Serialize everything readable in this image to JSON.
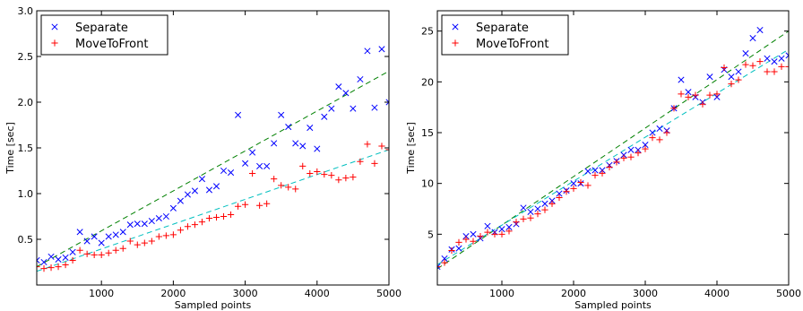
{
  "chart_data": [
    {
      "type": "scatter",
      "xlabel": "Sampled points",
      "ylabel": "Time [sec]",
      "xlim": [
        100,
        5000
      ],
      "ylim": [
        0,
        3.0
      ],
      "xticks": [
        1000,
        2000,
        3000,
        4000,
        5000
      ],
      "yticks": [
        0.5,
        1.0,
        1.5,
        2.0,
        2.5,
        3.0
      ],
      "ytick_labels": [
        "0.5",
        "1.0",
        "1.5",
        "2.0",
        "2.5",
        "3.0"
      ],
      "grid": false,
      "legend_position": "top-left",
      "series": [
        {
          "name": "Separate",
          "marker": "x",
          "color": "#0000ff",
          "x": [
            100,
            200,
            300,
            400,
            500,
            600,
            700,
            800,
            900,
            1000,
            1100,
            1200,
            1300,
            1400,
            1500,
            1600,
            1700,
            1800,
            1900,
            2000,
            2100,
            2200,
            2300,
            2400,
            2500,
            2600,
            2700,
            2800,
            2900,
            3000,
            3100,
            3200,
            3300,
            3400,
            3500,
            3600,
            3700,
            3800,
            3900,
            4000,
            4100,
            4200,
            4300,
            4400,
            4500,
            4600,
            4700,
            4800,
            4900,
            5000
          ],
          "y": [
            0.27,
            0.25,
            0.31,
            0.28,
            0.3,
            0.36,
            0.58,
            0.48,
            0.53,
            0.46,
            0.53,
            0.55,
            0.58,
            0.66,
            0.67,
            0.67,
            0.7,
            0.73,
            0.75,
            0.84,
            0.92,
            0.99,
            1.03,
            1.16,
            1.04,
            1.08,
            1.25,
            1.23,
            1.86,
            1.33,
            1.45,
            1.3,
            1.3,
            1.55,
            1.86,
            1.73,
            1.55,
            1.52,
            1.72,
            1.49,
            1.84,
            1.93,
            2.17,
            2.1,
            1.93,
            2.25,
            2.56,
            1.94,
            2.58,
            2.0
          ]
        },
        {
          "name": "MoveToFront",
          "marker": "+",
          "color": "#ff0000",
          "x": [
            100,
            200,
            300,
            400,
            500,
            600,
            700,
            800,
            900,
            1000,
            1100,
            1200,
            1300,
            1400,
            1500,
            1600,
            1700,
            1800,
            1900,
            2000,
            2100,
            2200,
            2300,
            2400,
            2500,
            2600,
            2700,
            2800,
            2900,
            3000,
            3100,
            3200,
            3300,
            3400,
            3500,
            3600,
            3700,
            3800,
            3900,
            4000,
            4100,
            4200,
            4300,
            4400,
            4500,
            4600,
            4700,
            4800,
            4900,
            5000
          ],
          "y": [
            0.2,
            0.18,
            0.19,
            0.2,
            0.22,
            0.27,
            0.38,
            0.34,
            0.33,
            0.33,
            0.35,
            0.38,
            0.4,
            0.48,
            0.44,
            0.46,
            0.48,
            0.53,
            0.54,
            0.55,
            0.6,
            0.64,
            0.66,
            0.69,
            0.73,
            0.74,
            0.75,
            0.77,
            0.86,
            0.88,
            1.22,
            0.87,
            0.89,
            1.16,
            1.09,
            1.07,
            1.05,
            1.3,
            1.22,
            1.24,
            1.21,
            1.2,
            1.15,
            1.17,
            1.18,
            1.35,
            1.54,
            1.33,
            1.52,
            1.48
          ]
        }
      ],
      "trend_lines": [
        {
          "color": "#008000",
          "style": "dashed",
          "x": [
            100,
            5000
          ],
          "y": [
            0.2,
            2.34
          ]
        },
        {
          "color": "#00bfbf",
          "style": "dashed",
          "x": [
            100,
            5000
          ],
          "y": [
            0.15,
            1.48
          ]
        }
      ]
    },
    {
      "type": "scatter",
      "xlabel": "Sampled points",
      "ylabel": "Time [sec]",
      "xlim": [
        100,
        5000
      ],
      "ylim": [
        0,
        27
      ],
      "xticks": [
        1000,
        2000,
        3000,
        4000,
        5000
      ],
      "yticks": [
        5,
        10,
        15,
        20,
        25
      ],
      "ytick_labels": [
        "5",
        "10",
        "15",
        "20",
        "25"
      ],
      "grid": false,
      "legend_position": "top-left",
      "series": [
        {
          "name": "Separate",
          "marker": "x",
          "color": "#0000ff",
          "x": [
            100,
            200,
            300,
            400,
            500,
            600,
            700,
            800,
            900,
            1000,
            1100,
            1200,
            1300,
            1400,
            1500,
            1600,
            1700,
            1800,
            1900,
            2000,
            2100,
            2200,
            2300,
            2400,
            2500,
            2600,
            2700,
            2800,
            2900,
            3000,
            3100,
            3200,
            3300,
            3400,
            3500,
            3600,
            3700,
            3800,
            3900,
            4000,
            4100,
            4200,
            4300,
            4400,
            4500,
            4600,
            4700,
            4800,
            4900,
            5000
          ],
          "y": [
            1.8,
            2.6,
            3.5,
            3.6,
            4.8,
            5.0,
            4.6,
            5.8,
            5.2,
            5.5,
            5.7,
            6.0,
            7.6,
            7.2,
            7.5,
            8.0,
            8.3,
            9.0,
            9.3,
            10.0,
            10.0,
            11.2,
            11.3,
            11.3,
            11.8,
            12.2,
            12.8,
            13.3,
            13.3,
            13.8,
            15.0,
            15.4,
            15.2,
            17.4,
            20.2,
            19.0,
            18.5,
            18.0,
            20.5,
            18.5,
            21.2,
            20.5,
            21.0,
            22.8,
            24.3,
            25.1,
            22.3,
            22.0,
            22.3,
            22.6
          ]
        },
        {
          "name": "MoveToFront",
          "marker": "+",
          "color": "#ff0000",
          "x": [
            100,
            200,
            300,
            400,
            500,
            600,
            700,
            800,
            900,
            1000,
            1100,
            1200,
            1300,
            1400,
            1500,
            1600,
            1700,
            1800,
            1900,
            2000,
            2100,
            2200,
            2300,
            2400,
            2500,
            2600,
            2700,
            2800,
            2900,
            3000,
            3100,
            3200,
            3300,
            3400,
            3500,
            3600,
            3700,
            3800,
            3900,
            4000,
            4100,
            4200,
            4300,
            4400,
            4500,
            4600,
            4700,
            4800,
            4900,
            5000
          ],
          "y": [
            1.8,
            2.2,
            3.4,
            4.2,
            4.5,
            4.3,
            4.8,
            5.2,
            5.0,
            5.0,
            5.3,
            6.2,
            6.5,
            6.6,
            7.0,
            7.4,
            8.0,
            8.6,
            9.2,
            9.5,
            10.1,
            9.8,
            10.8,
            11.0,
            11.6,
            12.1,
            12.5,
            12.6,
            13.0,
            13.4,
            14.5,
            14.3,
            15.0,
            17.4,
            18.8,
            18.5,
            18.7,
            17.8,
            18.7,
            18.8,
            21.4,
            19.8,
            20.2,
            21.7,
            21.6,
            22.0,
            21.0,
            21.0,
            21.5,
            21.5
          ]
        }
      ],
      "trend_lines": [
        {
          "color": "#008000",
          "style": "dashed",
          "x": [
            100,
            5000
          ],
          "y": [
            1.6,
            25.0
          ]
        },
        {
          "color": "#00bfbf",
          "style": "dashed",
          "x": [
            100,
            5000
          ],
          "y": [
            2.0,
            23.2
          ]
        }
      ]
    }
  ]
}
